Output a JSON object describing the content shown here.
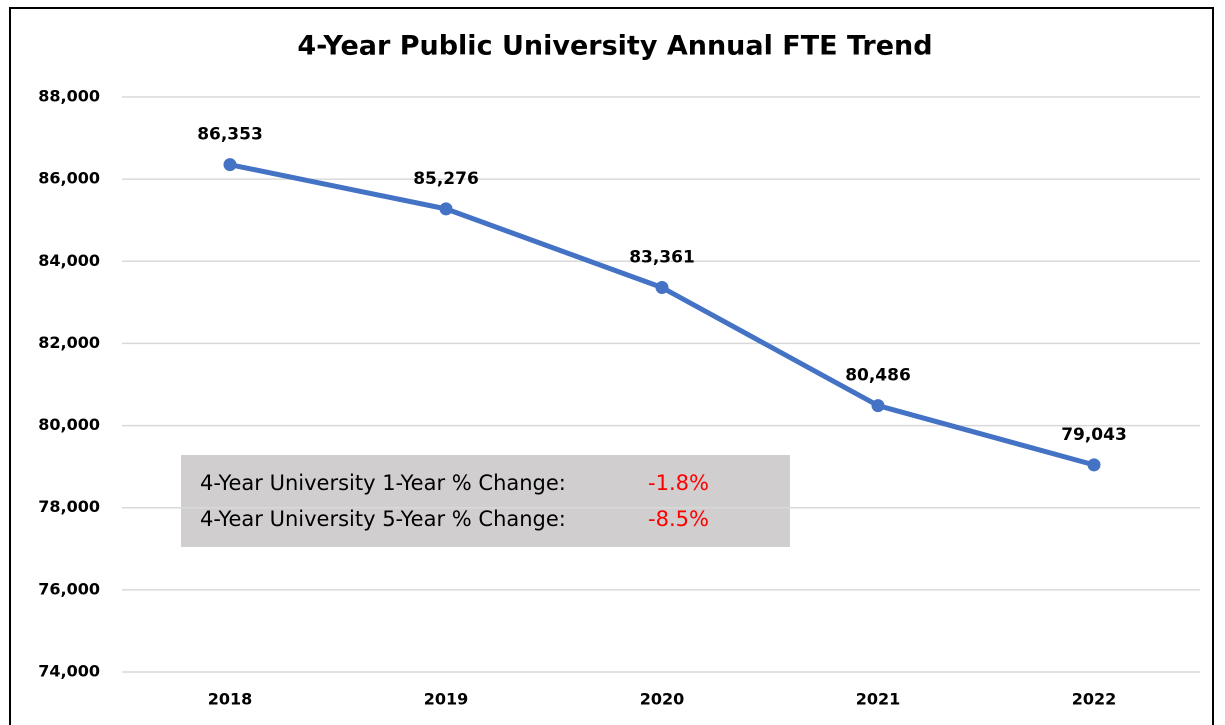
{
  "chart_data": {
    "type": "line",
    "title": "4-Year Public University Annual FTE Trend",
    "categories": [
      "2018",
      "2019",
      "2020",
      "2021",
      "2022"
    ],
    "series": [
      {
        "name": "FTE",
        "color": "#4472c4",
        "values": [
          86353,
          85276,
          83361,
          80486,
          79043
        ],
        "value_labels": [
          "86,353",
          "85,276",
          "83,361",
          "80,486",
          "79,043"
        ]
      }
    ],
    "ylim": [
      74000,
      88000
    ],
    "yticks": [
      {
        "value": 74000,
        "label": "74,000"
      },
      {
        "value": 76000,
        "label": "76,000"
      },
      {
        "value": 78000,
        "label": "78,000"
      },
      {
        "value": 80000,
        "label": "80,000"
      },
      {
        "value": 82000,
        "label": "82,000"
      },
      {
        "value": 84000,
        "label": "84,000"
      },
      {
        "value": 86000,
        "label": "86,000"
      },
      {
        "value": 88000,
        "label": "88,000"
      }
    ],
    "grid": true,
    "annotations": [
      {
        "text": "4-Year University 1-Year % Change:",
        "value": "-1.8%",
        "color": "#ff0000"
      },
      {
        "text": "4-Year University 5-Year % Change:",
        "value": "-8.5%",
        "color": "#ff0000"
      }
    ]
  }
}
